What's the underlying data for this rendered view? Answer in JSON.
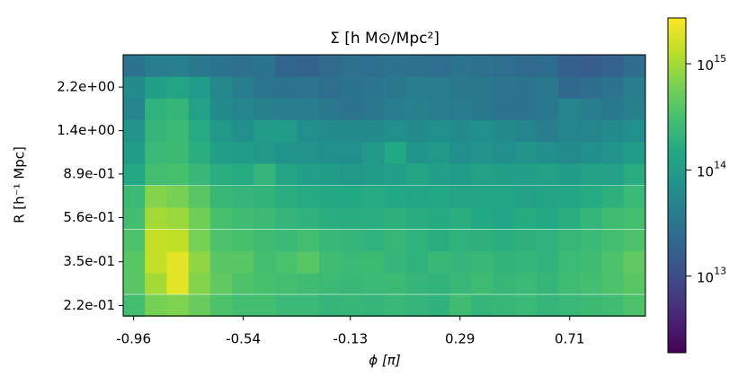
{
  "chart_data": {
    "type": "heatmap",
    "title": "Σ [h M⊙/Mpc²]",
    "x_label": "ϕ [π]",
    "y_label": "R [h⁻¹ Mpc]",
    "x": [
      -0.958,
      -0.875,
      -0.792,
      -0.708,
      -0.625,
      -0.542,
      -0.458,
      -0.375,
      -0.292,
      -0.208,
      -0.125,
      -0.042,
      0.042,
      0.125,
      0.208,
      0.292,
      0.375,
      0.458,
      0.542,
      0.625,
      0.708,
      0.792,
      0.875,
      0.958
    ],
    "y": [
      0.22,
      0.28,
      0.35,
      0.44,
      0.56,
      0.7,
      0.89,
      1.12,
      1.41,
      1.78,
      2.24,
      2.82
    ],
    "xlim": [
      -1,
      1
    ],
    "ylim": [
      0.197,
      3.16
    ],
    "log_y": true,
    "xticks": [
      -0.96,
      -0.54,
      -0.13,
      0.29,
      0.71
    ],
    "yticks": [
      {
        "value": 0.22,
        "label": "2.2e-01"
      },
      {
        "value": 0.35,
        "label": "3.5e-01"
      },
      {
        "value": 0.56,
        "label": "5.6e-01"
      },
      {
        "value": 0.89,
        "label": "8.9e-01"
      },
      {
        "value": 1.41,
        "label": "1.4e+00"
      },
      {
        "value": 2.24,
        "label": "2.2e+00"
      }
    ],
    "colormap": "viridis",
    "log_color": true,
    "clim": [
      1900000000000.0,
      2700000000000000.0
    ],
    "cticks": [
      {
        "value": 10000000000000.0,
        "label": "10^13"
      },
      {
        "value": 100000000000000.0,
        "label": "10^14"
      },
      {
        "value": 1000000000000000.0,
        "label": "10^15"
      }
    ],
    "z": [
      [
        300000000000000.0,
        600000000000000.0,
        650000000000000.0,
        500000000000000.0,
        350000000000000.0,
        300000000000000.0,
        300000000000000.0,
        250000000000000.0,
        250000000000000.0,
        220000000000000.0,
        230000000000000.0,
        220000000000000.0,
        240000000000000.0,
        220000000000000.0,
        200000000000000.0,
        280000000000000.0,
        220000000000000.0,
        230000000000000.0,
        250000000000000.0,
        220000000000000.0,
        240000000000000.0,
        260000000000000.0,
        280000000000000.0,
        350000000000000.0
      ],
      [
        400000000000000.0,
        1000000000000000.0,
        2000000000000000.0,
        700000000000000.0,
        450000000000000.0,
        350000000000000.0,
        320000000000000.0,
        300000000000000.0,
        280000000000000.0,
        260000000000000.0,
        240000000000000.0,
        250000000000000.0,
        260000000000000.0,
        220000000000000.0,
        210000000000000.0,
        240000000000000.0,
        270000000000000.0,
        230000000000000.0,
        250000000000000.0,
        220000000000000.0,
        280000000000000.0,
        300000000000000.0,
        350000000000000.0,
        400000000000000.0
      ],
      [
        400000000000000.0,
        1400000000000000.0,
        2000000000000000.0,
        800000000000000.0,
        400000000000000.0,
        400000000000000.0,
        300000000000000.0,
        330000000000000.0,
        400000000000000.0,
        280000000000000.0,
        250000000000000.0,
        260000000000000.0,
        220000000000000.0,
        200000000000000.0,
        240000000000000.0,
        220000000000000.0,
        240000000000000.0,
        210000000000000.0,
        220000000000000.0,
        200000000000000.0,
        250000000000000.0,
        280000000000000.0,
        350000000000000.0,
        450000000000000.0
      ],
      [
        350000000000000.0,
        1400000000000000.0,
        1300000000000000.0,
        600000000000000.0,
        350000000000000.0,
        320000000000000.0,
        280000000000000.0,
        250000000000000.0,
        300000000000000.0,
        240000000000000.0,
        220000000000000.0,
        200000000000000.0,
        230000000000000.0,
        200000000000000.0,
        180000000000000.0,
        200000000000000.0,
        190000000000000.0,
        180000000000000.0,
        190000000000000.0,
        200000000000000.0,
        230000000000000.0,
        250000000000000.0,
        300000000000000.0,
        350000000000000.0
      ],
      [
        300000000000000.0,
        1000000000000000.0,
        900000000000000.0,
        550000000000000.0,
        320000000000000.0,
        280000000000000.0,
        260000000000000.0,
        220000000000000.0,
        200000000000000.0,
        180000000000000.0,
        170000000000000.0,
        180000000000000.0,
        190000000000000.0,
        170000000000000.0,
        160000000000000.0,
        180000000000000.0,
        150000000000000.0,
        140000000000000.0,
        160000000000000.0,
        150000000000000.0,
        180000000000000.0,
        220000000000000.0,
        280000000000000.0,
        300000000000000.0
      ],
      [
        250000000000000.0,
        700000000000000.0,
        600000000000000.0,
        400000000000000.0,
        240000000000000.0,
        220000000000000.0,
        210000000000000.0,
        180000000000000.0,
        160000000000000.0,
        150000000000000.0,
        150000000000000.0,
        160000000000000.0,
        150000000000000.0,
        140000000000000.0,
        150000000000000.0,
        130000000000000.0,
        130000000000000.0,
        140000000000000.0,
        120000000000000.0,
        130000000000000.0,
        140000000000000.0,
        160000000000000.0,
        190000000000000.0,
        250000000000000.0
      ],
      [
        150000000000000.0,
        300000000000000.0,
        320000000000000.0,
        240000000000000.0,
        180000000000000.0,
        160000000000000.0,
        220000000000000.0,
        130000000000000.0,
        110000000000000.0,
        100000000000000.0,
        90000000000000.0,
        100000000000000.0,
        110000000000000.0,
        130000000000000.0,
        110000000000000.0,
        100000000000000.0,
        120000000000000.0,
        110000000000000.0,
        110000000000000.0,
        120000000000000.0,
        100000000000000.0,
        120000000000000.0,
        120000000000000.0,
        170000000000000.0
      ],
      [
        100000000000000.0,
        250000000000000.0,
        260000000000000.0,
        180000000000000.0,
        110000000000000.0,
        100000000000000.0,
        90000000000000.0,
        80000000000000.0,
        80000000000000.0,
        70000000000000.0,
        70000000000000.0,
        90000000000000.0,
        150000000000000.0,
        80000000000000.0,
        90000000000000.0,
        70000000000000.0,
        80000000000000.0,
        70000000000000.0,
        80000000000000.0,
        70000000000000.0,
        60000000000000.0,
        70000000000000.0,
        80000000000000.0,
        100000000000000.0
      ],
      [
        80000000000000.0,
        220000000000000.0,
        250000000000000.0,
        160000000000000.0,
        90000000000000.0,
        70000000000000.0,
        100000000000000.0,
        100000000000000.0,
        70000000000000.0,
        60000000000000.0,
        60000000000000.0,
        60000000000000.0,
        70000000000000.0,
        60000000000000.0,
        70000000000000.0,
        60000000000000.0,
        70000000000000.0,
        60000000000000.0,
        50000000000000.0,
        40000000000000.0,
        50000000000000.0,
        50000000000000.0,
        60000000000000.0,
        70000000000000.0
      ],
      [
        50000000000000.0,
        200000000000000.0,
        220000000000000.0,
        120000000000000.0,
        60000000000000.0,
        50000000000000.0,
        45000000000000.0,
        40000000000000.0,
        40000000000000.0,
        35000000000000.0,
        30000000000000.0,
        35000000000000.0,
        40000000000000.0,
        45000000000000.0,
        40000000000000.0,
        38000000000000.0,
        35000000000000.0,
        30000000000000.0,
        30000000000000.0,
        35000000000000.0,
        50000000000000.0,
        40000000000000.0,
        35000000000000.0,
        45000000000000.0
      ],
      [
        60000000000000.0,
        110000000000000.0,
        130000000000000.0,
        100000000000000.0,
        55000000000000.0,
        40000000000000.0,
        32000000000000.0,
        30000000000000.0,
        32000000000000.0,
        26000000000000.0,
        30000000000000.0,
        32000000000000.0,
        35000000000000.0,
        40000000000000.0,
        40000000000000.0,
        35000000000000.0,
        35000000000000.0,
        32000000000000.0,
        30000000000000.0,
        35000000000000.0,
        22000000000000.0,
        25000000000000.0,
        30000000000000.0,
        40000000000000.0
      ],
      [
        30000000000000.0,
        40000000000000.0,
        42000000000000.0,
        35000000000000.0,
        30000000000000.0,
        28000000000000.0,
        30000000000000.0,
        20000000000000.0,
        19000000000000.0,
        23000000000000.0,
        28000000000000.0,
        26000000000000.0,
        30000000000000.0,
        28000000000000.0,
        26000000000000.0,
        30000000000000.0,
        28000000000000.0,
        26000000000000.0,
        24000000000000.0,
        25000000000000.0,
        17000000000000.0,
        16000000000000.0,
        18000000000000.0,
        25000000000000.0
      ]
    ]
  }
}
